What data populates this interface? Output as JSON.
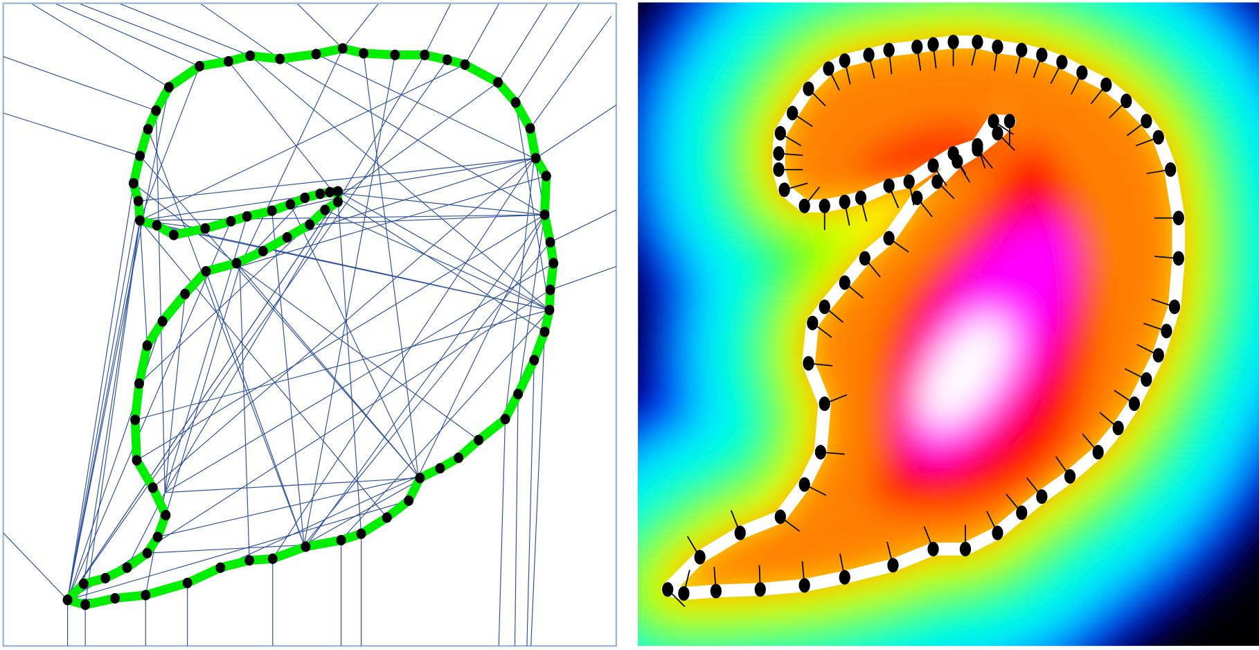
{
  "left_panel": {
    "border_color": "#9bb8dc",
    "line_color": "#2b4f9e",
    "curve_color": "#00ee00",
    "point_color": "#000000"
  },
  "right_panel": {
    "colormap": [
      "#000000",
      "#0000ff",
      "#00ffff",
      "#00ff00",
      "#ffff00",
      "#ff8000",
      "#ff0000",
      "#ff00ff",
      "#ffffff"
    ],
    "boundary_color": "#ffffff",
    "point_color": "#000000"
  }
}
